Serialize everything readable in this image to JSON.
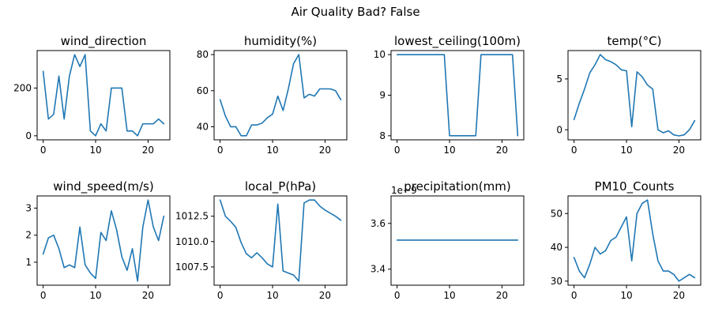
{
  "figure": {
    "title": "Air Quality Bad? False",
    "line_color": "#1f77b4"
  },
  "chart_data": [
    {
      "type": "line",
      "title": "wind_direction",
      "x": [
        0,
        1,
        2,
        3,
        4,
        5,
        6,
        7,
        8,
        9,
        10,
        11,
        12,
        13,
        14,
        15,
        16,
        17,
        18,
        19,
        20,
        21,
        22,
        23
      ],
      "y": [
        270,
        70,
        90,
        250,
        70,
        250,
        340,
        290,
        340,
        20,
        0,
        50,
        20,
        200,
        200,
        200,
        20,
        20,
        0,
        50,
        50,
        50,
        70,
        50
      ],
      "xlim": [
        -1.15,
        24.15
      ],
      "ylim": [
        -17,
        357
      ],
      "xticks": [
        0,
        10,
        20
      ],
      "xtick_labels": [
        "0",
        "10",
        "20"
      ],
      "yticks": [
        0,
        200
      ],
      "ytick_labels": [
        "0",
        "200"
      ]
    },
    {
      "type": "line",
      "title": "humidity(%)",
      "x": [
        0,
        1,
        2,
        3,
        4,
        5,
        6,
        7,
        8,
        9,
        10,
        11,
        12,
        13,
        14,
        15,
        16,
        17,
        18,
        19,
        20,
        21,
        22,
        23
      ],
      "y": [
        55,
        46,
        40,
        40,
        35,
        35,
        41,
        41,
        42,
        45,
        47,
        57,
        49,
        61,
        75,
        80,
        56,
        58,
        57,
        61,
        61,
        61,
        60,
        55
      ],
      "xlim": [
        -1.15,
        24.15
      ],
      "ylim": [
        32.75,
        82.25
      ],
      "xticks": [
        0,
        10,
        20
      ],
      "xtick_labels": [
        "0",
        "10",
        "20"
      ],
      "yticks": [
        40,
        60,
        80
      ],
      "ytick_labels": [
        "40",
        "60",
        "80"
      ]
    },
    {
      "type": "line",
      "title": "lowest_ceiling(100m)",
      "x": [
        0,
        1,
        2,
        3,
        4,
        5,
        6,
        7,
        8,
        9,
        10,
        11,
        12,
        13,
        14,
        15,
        16,
        17,
        18,
        19,
        20,
        21,
        22,
        23
      ],
      "y": [
        10,
        10,
        10,
        10,
        10,
        10,
        10,
        10,
        10,
        10,
        8,
        8,
        8,
        8,
        8,
        8,
        10,
        10,
        10,
        10,
        10,
        10,
        10,
        8
      ],
      "xlim": [
        -1.15,
        24.15
      ],
      "ylim": [
        7.9,
        10.1
      ],
      "xticks": [
        0,
        10,
        20
      ],
      "xtick_labels": [
        "0",
        "10",
        "20"
      ],
      "yticks": [
        8,
        9,
        10
      ],
      "ytick_labels": [
        "8",
        "9",
        "10"
      ]
    },
    {
      "type": "line",
      "title": "temp(°C)",
      "x": [
        0,
        1,
        2,
        3,
        4,
        5,
        6,
        7,
        8,
        9,
        10,
        11,
        12,
        13,
        14,
        15,
        16,
        17,
        18,
        19,
        20,
        21,
        22,
        23
      ],
      "y": [
        1,
        2.6,
        4,
        5.6,
        6.4,
        7.4,
        6.9,
        6.7,
        6.4,
        5.9,
        5.8,
        0.3,
        5.7,
        5.2,
        4.4,
        4,
        0,
        -0.3,
        -0.1,
        -0.5,
        -0.6,
        -0.5,
        0,
        0.9
      ],
      "xlim": [
        -1.15,
        24.15
      ],
      "ylim": [
        -0.99,
        7.79
      ],
      "xticks": [
        0,
        10,
        20
      ],
      "xtick_labels": [
        "0",
        "10",
        "20"
      ],
      "yticks": [
        0,
        5
      ],
      "ytick_labels": [
        "0",
        "5"
      ]
    },
    {
      "type": "line",
      "title": "wind_speed(m/s)",
      "x": [
        0,
        1,
        2,
        3,
        4,
        5,
        6,
        7,
        8,
        9,
        10,
        11,
        12,
        13,
        14,
        15,
        16,
        17,
        18,
        19,
        20,
        21,
        22,
        23
      ],
      "y": [
        1.3,
        1.9,
        2,
        1.5,
        0.8,
        0.9,
        0.8,
        2.3,
        0.9,
        0.6,
        0.4,
        2.1,
        1.8,
        2.9,
        2.2,
        1.2,
        0.7,
        1.5,
        0.3,
        2.3,
        3.3,
        2.3,
        1.8,
        2.7
      ],
      "xlim": [
        -1.15,
        24.15
      ],
      "ylim": [
        0.15,
        3.45
      ],
      "xticks": [
        0,
        10,
        20
      ],
      "xtick_labels": [
        "0",
        "10",
        "20"
      ],
      "yticks": [
        1,
        2,
        3
      ],
      "ytick_labels": [
        "1",
        "2",
        "3"
      ]
    },
    {
      "type": "line",
      "title": "local_P(hPa)",
      "x": [
        0,
        1,
        2,
        3,
        4,
        5,
        6,
        7,
        8,
        9,
        10,
        11,
        12,
        13,
        14,
        15,
        16,
        17,
        18,
        19,
        20,
        21,
        22,
        23
      ],
      "y": [
        1014.1,
        1012.5,
        1012.0,
        1011.4,
        1009.9,
        1008.8,
        1008.4,
        1008.9,
        1008.4,
        1007.8,
        1007.5,
        1013.7,
        1007.1,
        1006.9,
        1006.7,
        1006.1,
        1013.8,
        1014.1,
        1014.1,
        1013.5,
        1013.1,
        1012.8,
        1012.5,
        1012.1
      ],
      "xlim": [
        -1.15,
        24.15
      ],
      "ylim": [
        1005.7,
        1014.5
      ],
      "xticks": [
        0,
        10,
        20
      ],
      "xtick_labels": [
        "0",
        "10",
        "20"
      ],
      "yticks": [
        1007.5,
        1010.0,
        1012.5
      ],
      "ytick_labels": [
        "1007.5",
        "1010.0",
        "1012.5"
      ]
    },
    {
      "type": "line",
      "title": "precipitation(mm)",
      "offset_text": "1e−9",
      "x": [
        0,
        1,
        2,
        3,
        4,
        5,
        6,
        7,
        8,
        9,
        10,
        11,
        12,
        13,
        14,
        15,
        16,
        17,
        18,
        19,
        20,
        21,
        22,
        23
      ],
      "y": [
        3.527,
        3.527,
        3.527,
        3.527,
        3.527,
        3.527,
        3.527,
        3.527,
        3.527,
        3.527,
        3.527,
        3.527,
        3.527,
        3.527,
        3.527,
        3.527,
        3.527,
        3.527,
        3.527,
        3.527,
        3.527,
        3.527,
        3.527,
        3.527
      ],
      "xlim": [
        -1.15,
        24.15
      ],
      "ylim": [
        3.33,
        3.72
      ],
      "xticks": [
        0,
        10,
        20
      ],
      "xtick_labels": [
        "0",
        "10",
        "20"
      ],
      "yticks": [
        3.4,
        3.6
      ],
      "ytick_labels": [
        "3.4",
        "3.6"
      ]
    },
    {
      "type": "line",
      "title": "PM10_Counts",
      "x": [
        0,
        1,
        2,
        3,
        4,
        5,
        6,
        7,
        8,
        9,
        10,
        11,
        12,
        13,
        14,
        15,
        16,
        17,
        18,
        19,
        20,
        21,
        22,
        23
      ],
      "y": [
        37,
        33,
        31,
        35,
        40,
        38,
        39,
        42,
        43,
        46,
        49,
        36,
        50,
        53,
        54,
        44,
        36,
        33,
        33,
        32,
        30,
        31,
        32,
        31
      ],
      "xlim": [
        -1.15,
        24.15
      ],
      "ylim": [
        28.8,
        55.2
      ],
      "xticks": [
        0,
        10,
        20
      ],
      "xtick_labels": [
        "0",
        "10",
        "20"
      ],
      "yticks": [
        30,
        40,
        50
      ],
      "ytick_labels": [
        "30",
        "40",
        "50"
      ]
    }
  ]
}
